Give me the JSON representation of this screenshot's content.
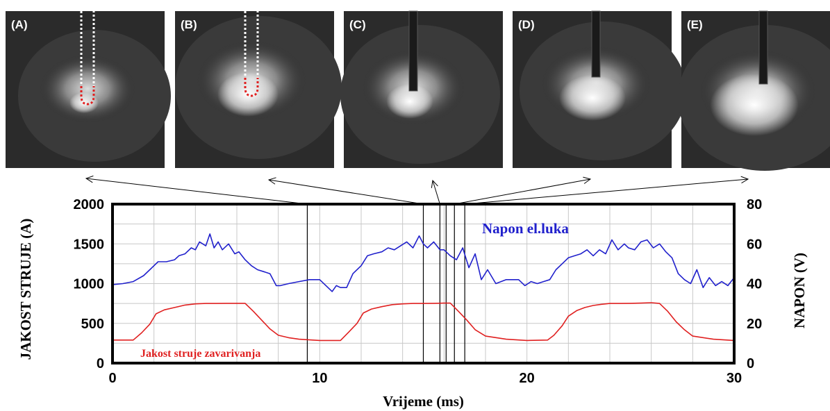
{
  "panels": [
    {
      "label": "(A)",
      "electrode": "outline"
    },
    {
      "label": "(B)",
      "electrode": "outline"
    },
    {
      "label": "(C)",
      "electrode": "solid"
    },
    {
      "label": "(D)",
      "electrode": "solid"
    },
    {
      "label": "(E)",
      "electrode": "solid"
    }
  ],
  "chart_data": {
    "type": "line",
    "xlabel": "Vrijeme (ms)",
    "ylabel_left": "JAKOST STRUJE (A)",
    "ylabel_right": "NAPON (V)",
    "xlim": [
      0,
      30
    ],
    "ylim_left": [
      0,
      2000
    ],
    "ylim_right": [
      0,
      80
    ],
    "x_ticks": [
      "0",
      "10",
      "20",
      "30"
    ],
    "y_ticks_left": [
      "0",
      "500",
      "1000",
      "1500",
      "2000"
    ],
    "y_ticks_right": [
      "0",
      "20",
      "40",
      "60",
      "80"
    ],
    "grid": true,
    "series": [
      {
        "name": "Napon el.luka",
        "axis": "right",
        "color": "#2020cc",
        "x": [
          0,
          0.5,
          1,
          1.5,
          1.8,
          2.2,
          2.6,
          3.0,
          3.2,
          3.5,
          3.8,
          4.0,
          4.2,
          4.5,
          4.7,
          4.9,
          5.1,
          5.3,
          5.6,
          5.9,
          6.1,
          6.4,
          6.7,
          7.0,
          7.3,
          7.6,
          7.9,
          8.1,
          8.5,
          9.0,
          9.5,
          10.0,
          10.3,
          10.6,
          10.8,
          11.0,
          11.3,
          11.6,
          12.0,
          12.3,
          12.6,
          13.0,
          13.3,
          13.6,
          13.9,
          14.2,
          14.5,
          14.8,
          15.0,
          15.2,
          15.5,
          15.8,
          16.0,
          16.3,
          16.6,
          16.9,
          17.2,
          17.5,
          17.8,
          18.1,
          18.5,
          19.0,
          19.3,
          19.6,
          19.9,
          20.2,
          20.5,
          20.8,
          21.1,
          21.4,
          21.7,
          22.0,
          22.3,
          22.6,
          22.9,
          23.2,
          23.5,
          23.8,
          24.1,
          24.4,
          24.7,
          24.9,
          25.2,
          25.5,
          25.8,
          26.1,
          26.4,
          26.7,
          27.0,
          27.3,
          27.6,
          27.9,
          28.2,
          28.5,
          28.8,
          29.1,
          29.4,
          29.7,
          30.0
        ],
        "y": [
          39.5,
          40,
          41,
          44,
          47,
          51,
          51,
          52,
          54,
          55,
          58,
          57,
          61,
          59,
          65,
          58,
          61,
          57,
          60,
          55,
          56,
          52,
          49,
          47,
          46,
          45,
          39,
          39,
          40,
          41,
          42,
          42,
          39,
          36,
          39,
          38,
          38,
          45,
          49,
          54,
          55,
          56,
          58,
          57,
          59,
          61,
          58,
          64,
          60,
          58,
          61,
          57,
          57,
          54,
          52,
          58,
          48,
          55,
          42,
          47,
          40,
          42,
          42,
          42,
          39,
          41,
          40,
          41,
          42,
          47,
          50,
          53,
          54,
          55,
          57,
          54,
          57,
          55,
          62,
          57,
          60,
          58,
          57,
          61,
          62,
          58,
          60,
          56,
          53,
          45,
          42,
          40,
          47,
          38,
          43,
          39,
          41,
          39,
          43
        ]
      },
      {
        "name": "Jakost struje zavarivanja",
        "axis": "left",
        "color": "#e02020",
        "x": [
          0,
          1.0,
          1.4,
          1.8,
          2.1,
          2.5,
          3.0,
          3.5,
          4.0,
          4.5,
          5.0,
          5.5,
          6.0,
          6.4,
          6.8,
          7.2,
          7.6,
          8.0,
          8.5,
          9.0,
          10.0,
          11.0,
          11.4,
          11.8,
          12.1,
          12.5,
          13.0,
          13.5,
          14.0,
          14.5,
          15.0,
          15.5,
          16.0,
          16.3,
          16.7,
          17.1,
          17.5,
          18.0,
          19.0,
          20.0,
          21.0,
          21.3,
          21.7,
          22.0,
          22.4,
          22.8,
          23.2,
          23.6,
          24.0,
          24.5,
          25.0,
          25.5,
          26.0,
          26.4,
          26.8,
          27.2,
          27.6,
          28.0,
          29.0,
          30.0
        ],
        "y": [
          290,
          290,
          380,
          490,
          620,
          670,
          700,
          730,
          745,
          750,
          750,
          752,
          752,
          752,
          650,
          540,
          430,
          350,
          320,
          300,
          285,
          285,
          390,
          500,
          630,
          680,
          710,
          735,
          745,
          750,
          750,
          752,
          755,
          755,
          650,
          540,
          420,
          340,
          300,
          285,
          290,
          350,
          470,
          590,
          660,
          700,
          725,
          740,
          750,
          750,
          752,
          755,
          760,
          750,
          650,
          520,
          420,
          340,
          300,
          285
        ]
      }
    ],
    "markers_x": [
      9.4,
      15.0,
      15.8,
      16.1,
      16.5,
      17.0
    ]
  }
}
